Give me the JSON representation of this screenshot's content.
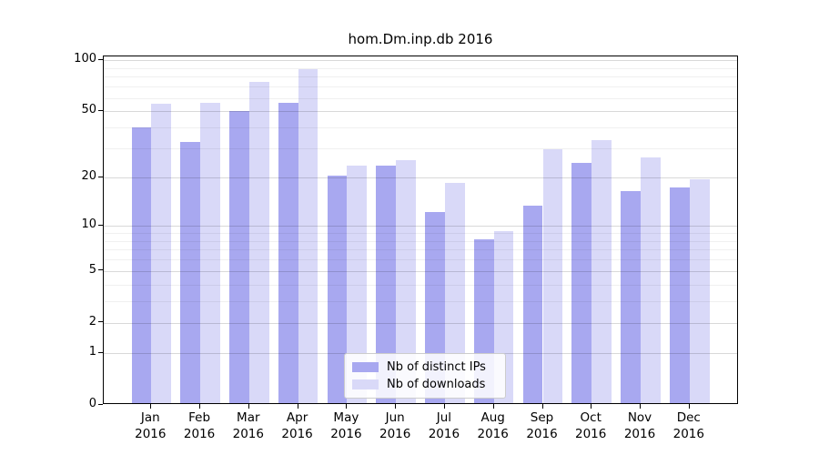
{
  "figure": {
    "background": "#ffffff"
  },
  "chart_data": {
    "type": "bar",
    "title": "hom.Dm.inp.db 2016",
    "categories": [
      "Jan",
      "Feb",
      "Mar",
      "Apr",
      "May",
      "Jun",
      "Jul",
      "Aug",
      "Sep",
      "Oct",
      "Nov",
      "Dec"
    ],
    "year_label": "2016",
    "series": [
      {
        "name": "Nb of distinct IPs",
        "color": "#a8a8f0",
        "values": [
          39,
          32,
          49,
          55,
          20,
          23,
          12,
          8,
          13,
          24,
          16,
          17
        ]
      },
      {
        "name": "Nb of downloads",
        "color": "#d9d9f8",
        "values": [
          54,
          55,
          73,
          87,
          23,
          25,
          18,
          9,
          29,
          33,
          26,
          19
        ]
      }
    ],
    "xlabel": "",
    "ylabel": "",
    "y_axis": {
      "scale": "log1p",
      "ticks": [
        0,
        1,
        2,
        5,
        10,
        20,
        50,
        100
      ],
      "minor_ticks": [
        3,
        4,
        6,
        7,
        8,
        9,
        30,
        40,
        60,
        70,
        80,
        90
      ],
      "top_value": 105
    },
    "grid": "on",
    "grid_over_bars": true,
    "legend": {
      "position": "lower-center",
      "entries": [
        "Nb of distinct IPs",
        "Nb of downloads"
      ]
    },
    "axis_color": "#000000"
  }
}
